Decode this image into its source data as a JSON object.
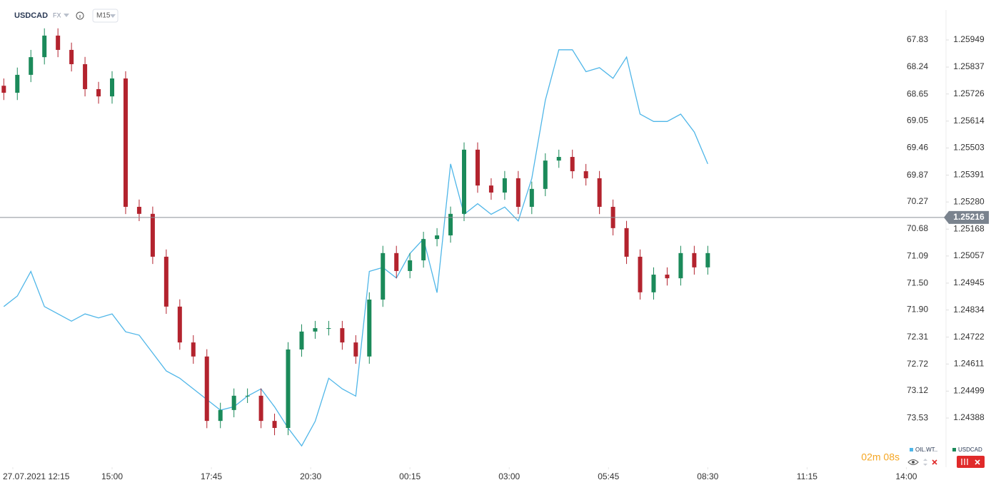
{
  "chart_data": {
    "type": "candlestick",
    "title": "USDCAD",
    "market": "FX",
    "timeframe": "M15",
    "x": [
      -1,
      0.5,
      2,
      3.5,
      5,
      6.5,
      8,
      9.5,
      11,
      12.5,
      14,
      15.5,
      17,
      18.5,
      20,
      21.5,
      23,
      24.5,
      26,
      27.5,
      29,
      30.5,
      32,
      33.5,
      35,
      36.5,
      38,
      39.5,
      41,
      42.5,
      44,
      45.5,
      47,
      48.5,
      50,
      51.5,
      53,
      54.5,
      56,
      57.5,
      59,
      60.5,
      62,
      63.5,
      65,
      66.5,
      68,
      69.5,
      71,
      72.5,
      74,
      75.5,
      77
    ],
    "series": [
      {
        "name": "USDCAD",
        "type": "candlestick",
        "axis": "y",
        "color": "#1b8a5a",
        "color_down": "#b3232e",
        "open": [
          1.2576,
          1.25731,
          1.25805,
          1.25878,
          1.25967,
          1.25908,
          1.25849,
          1.25746,
          1.25716,
          1.2579,
          1.2526,
          1.25231,
          1.25054,
          1.24848,
          1.247,
          1.24642,
          1.24376,
          1.24421,
          1.2448,
          1.2448,
          1.24376,
          1.24347,
          1.24671,
          1.24745,
          1.24759,
          1.24759,
          1.247,
          1.24642,
          1.24877,
          1.25069,
          1.24995,
          1.25039,
          1.25127,
          1.25142,
          1.25231,
          1.25496,
          1.25348,
          1.25319,
          1.25378,
          1.2526,
          1.25334,
          1.25451,
          1.25466,
          1.25407,
          1.25378,
          1.2526,
          1.25172,
          1.25054,
          1.24907,
          1.2498,
          1.24965,
          1.25069,
          1.2501
        ],
        "high": [
          1.2579,
          1.25835,
          1.25908,
          1.25997,
          1.25997,
          1.25938,
          1.25879,
          1.25776,
          1.2582,
          1.2582,
          1.2529,
          1.25261,
          1.25084,
          1.24878,
          1.2473,
          1.24672,
          1.24451,
          1.2451,
          1.2451,
          1.2451,
          1.24406,
          1.24701,
          1.24775,
          1.24789,
          1.24789,
          1.24789,
          1.2473,
          1.24907,
          1.25099,
          1.25099,
          1.25069,
          1.25157,
          1.25172,
          1.25261,
          1.25526,
          1.25526,
          1.25378,
          1.25408,
          1.25408,
          1.25364,
          1.25481,
          1.25496,
          1.25496,
          1.25437,
          1.25408,
          1.2529,
          1.25202,
          1.25084,
          1.2501,
          1.2501,
          1.25099,
          1.25099,
          1.25099
        ],
        "low": [
          1.25701,
          1.25701,
          1.25775,
          1.25848,
          1.25878,
          1.25819,
          1.25716,
          1.25686,
          1.25686,
          1.2523,
          1.25201,
          1.25024,
          1.24818,
          1.2467,
          1.24612,
          1.24346,
          1.24346,
          1.24391,
          1.2445,
          1.24346,
          1.24317,
          1.24317,
          1.24641,
          1.24715,
          1.24729,
          1.2467,
          1.24612,
          1.24612,
          1.24847,
          1.24965,
          1.24965,
          1.25009,
          1.25097,
          1.25112,
          1.25201,
          1.25318,
          1.25289,
          1.25289,
          1.2523,
          1.2523,
          1.25304,
          1.25421,
          1.25377,
          1.25348,
          1.2523,
          1.25142,
          1.25024,
          1.24877,
          1.24877,
          1.24935,
          1.24935,
          1.2498,
          1.2498
        ],
        "close": [
          1.25731,
          1.25805,
          1.25878,
          1.25967,
          1.25908,
          1.25849,
          1.25746,
          1.25716,
          1.2579,
          1.2526,
          1.25231,
          1.25054,
          1.24848,
          1.247,
          1.24642,
          1.24376,
          1.24421,
          1.2448,
          1.2448,
          1.24376,
          1.24347,
          1.24671,
          1.24745,
          1.24759,
          1.24759,
          1.247,
          1.24642,
          1.24877,
          1.25069,
          1.24995,
          1.25039,
          1.25127,
          1.25142,
          1.25231,
          1.25496,
          1.25348,
          1.25319,
          1.25378,
          1.2526,
          1.25334,
          1.25451,
          1.25466,
          1.25407,
          1.25378,
          1.2526,
          1.25172,
          1.25054,
          1.24907,
          1.2498,
          1.24965,
          1.25069,
          1.2501,
          1.25069
        ]
      },
      {
        "name": "OIL.WT..",
        "type": "line",
        "axis": "y2",
        "color": "#4fb6e8",
        "values": [
          71.85,
          71.69,
          71.32,
          71.85,
          71.96,
          72.07,
          71.96,
          72.02,
          71.96,
          72.23,
          72.28,
          72.55,
          72.82,
          72.93,
          73.09,
          73.25,
          73.41,
          73.36,
          73.2,
          73.09,
          73.36,
          73.68,
          73.95,
          73.58,
          72.93,
          73.09,
          73.2,
          71.32,
          71.26,
          71.42,
          71.05,
          70.83,
          71.64,
          69.7,
          70.46,
          70.3,
          70.46,
          70.35,
          70.56,
          69.92,
          68.74,
          67.98,
          67.98,
          68.31,
          68.25,
          68.41,
          68.09,
          68.95,
          69.06,
          69.06,
          68.95,
          69.22,
          69.7
        ]
      }
    ],
    "xlim": [
      -1.42,
      103
    ],
    "xticks": [
      {
        "value": 0,
        "label": "27.07.2021 12:15"
      },
      {
        "value": 11,
        "label": "15:00"
      },
      {
        "value": 22,
        "label": "17:45"
      },
      {
        "value": 33,
        "label": "20:30"
      },
      {
        "value": 44,
        "label": "00:15"
      },
      {
        "value": 55,
        "label": "03:00"
      },
      {
        "value": 66,
        "label": "05:45"
      },
      {
        "value": 77,
        "label": "08:30"
      },
      {
        "value": 88,
        "label": "11:15"
      },
      {
        "value": 99,
        "label": "14:00"
      }
    ],
    "ylim": [
      1.24185,
      1.26114
    ],
    "yticks": [
      1.25949,
      1.25837,
      1.25726,
      1.25614,
      1.25503,
      1.25391,
      {
        "value": 1.2528,
        "label": "1.25280"
      },
      1.25168,
      1.25057,
      1.24945,
      1.24834,
      1.24722,
      1.24611,
      1.24499,
      1.24388
    ],
    "y2lim": [
      67.23,
      74.27
    ],
    "y2_inverted": true,
    "y2ticks": [
      67.83,
      68.24,
      68.65,
      69.05,
      69.46,
      69.87,
      70.27,
      70.68,
      71.09,
      {
        "value": 71.5,
        "label": "71.50"
      },
      {
        "value": 71.9,
        "label": "71.90"
      },
      72.31,
      72.72,
      73.12,
      73.53
    ],
    "current_price": 1.25216,
    "timer": "02m 08s"
  }
}
